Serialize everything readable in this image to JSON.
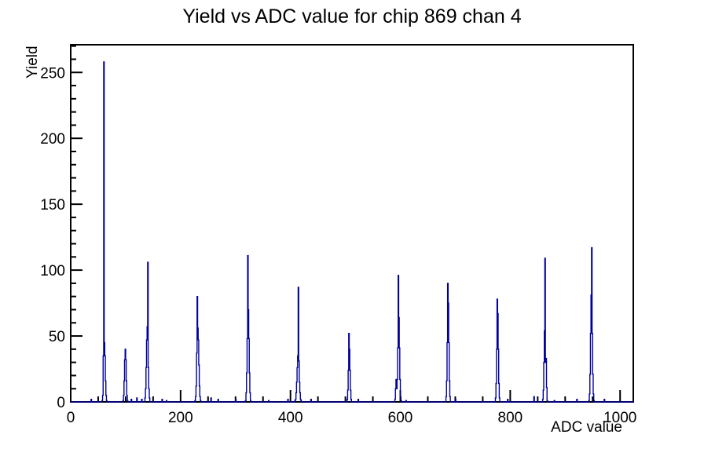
{
  "page": {
    "title": "Yield vs ADC value for chip 869 chan 4"
  },
  "chart_data": {
    "type": "line",
    "subtype": "step-histogram",
    "title": "Yield vs ADC value for chip 869 chan 4",
    "xlabel": "ADC value",
    "ylabel": "Yield",
    "xlim": [
      0,
      1024
    ],
    "ylim": [
      0,
      271
    ],
    "x_major_ticks": [
      0,
      200,
      400,
      600,
      800,
      1000
    ],
    "x_minor_step": 50,
    "y_major_ticks": [
      0,
      50,
      100,
      150,
      200,
      250
    ],
    "y_minor_step": 10,
    "grid": false,
    "legend": false,
    "line_color": "#00009a",
    "frame_color": "#000000",
    "background": "#ffffff",
    "peaks": [
      {
        "adc": 60,
        "yield": 258
      },
      {
        "adc": 99,
        "yield": 40
      },
      {
        "adc": 140,
        "yield": 106
      },
      {
        "adc": 230,
        "yield": 80
      },
      {
        "adc": 322,
        "yield": 111
      },
      {
        "adc": 414,
        "yield": 87
      },
      {
        "adc": 506,
        "yield": 52
      },
      {
        "adc": 596,
        "yield": 96
      },
      {
        "adc": 686,
        "yield": 90
      },
      {
        "adc": 776,
        "yield": 78
      },
      {
        "adc": 863,
        "yield": 109
      },
      {
        "adc": 948,
        "yield": 117
      }
    ],
    "peak_shape_components": [
      [
        60,
        258,
        0.5
      ],
      [
        61,
        45,
        1.4
      ],
      [
        99,
        40,
        1.5
      ],
      [
        140,
        106,
        0.6
      ],
      [
        139,
        57,
        1.6
      ],
      [
        230,
        80,
        0.8
      ],
      [
        231,
        56,
        1.7
      ],
      [
        322,
        111,
        0.7
      ],
      [
        322.5,
        74,
        1.6
      ],
      [
        414,
        87,
        0.7
      ],
      [
        413.5,
        36,
        1.9
      ],
      [
        506,
        52,
        0.6
      ],
      [
        506.5,
        43,
        1.4
      ],
      [
        596,
        96,
        0.7
      ],
      [
        596.5,
        68,
        1.5
      ],
      [
        592,
        17,
        1.0
      ],
      [
        686,
        90,
        0.8
      ],
      [
        686.5,
        80,
        1.4
      ],
      [
        776,
        78,
        0.8
      ],
      [
        776.5,
        71,
        1.4
      ],
      [
        863,
        109,
        0.45
      ],
      [
        862.5,
        58,
        1.3
      ],
      [
        864.6,
        36,
        0.9
      ],
      [
        948,
        117,
        0.7
      ],
      [
        947.5,
        86,
        1.5
      ]
    ],
    "baseline_bumps": [
      [
        37,
        2
      ],
      [
        110,
        2
      ],
      [
        120,
        3
      ],
      [
        129,
        2
      ],
      [
        166,
        2
      ],
      [
        174,
        1
      ],
      [
        255,
        3
      ],
      [
        268,
        2
      ],
      [
        300,
        2
      ],
      [
        360,
        1
      ],
      [
        395,
        2
      ],
      [
        437,
        2
      ],
      [
        523,
        2
      ],
      [
        610,
        1
      ],
      [
        700,
        2
      ],
      [
        795,
        2
      ],
      [
        843,
        4
      ],
      [
        880,
        1
      ],
      [
        921,
        2
      ],
      [
        971,
        2
      ]
    ]
  }
}
